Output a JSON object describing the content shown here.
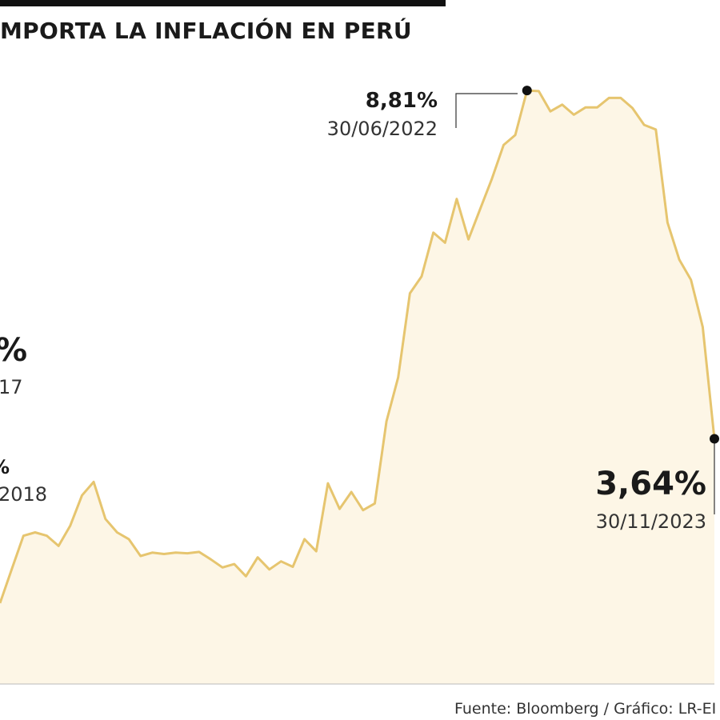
{
  "title": "MPORTA LA INFLACIÓN EN PERÚ",
  "source": "Fuente: Bloomberg / Gráfico: LR-EI",
  "colors": {
    "line": "#e6c56f",
    "area": "#fdf6e6",
    "marker": "#111111"
  },
  "annotations": {
    "peak": {
      "value": "8,81%",
      "date": "30/06/2022"
    },
    "latest": {
      "value": "3,64%",
      "date": "30/11/2023"
    },
    "left_partial_1": {
      "value": "%",
      "date": "17"
    },
    "left_partial_2": {
      "value": "%",
      "date": "2018"
    }
  },
  "chart_data": {
    "type": "area",
    "title": "MPORTA LA INFLACIÓN EN PERÚ",
    "xlabel": "",
    "ylabel": "",
    "grid": false,
    "ylim": [
      0,
      9.5
    ],
    "series": [
      {
        "values": [
          1.2,
          1.7,
          2.2,
          2.25,
          2.2,
          2.05,
          2.35,
          2.8,
          3.0,
          2.45,
          2.25,
          2.15,
          1.9,
          1.95,
          1.93,
          1.95,
          1.94,
          1.96,
          1.85,
          1.73,
          1.78,
          1.6,
          1.88,
          1.7,
          1.82,
          1.74,
          2.15,
          1.97,
          2.98,
          2.6,
          2.85,
          2.58,
          2.68,
          3.9,
          4.55,
          5.8,
          6.05,
          6.7,
          6.55,
          7.2,
          6.6,
          7.05,
          7.5,
          8.0,
          8.15,
          8.81,
          8.8,
          8.5,
          8.6,
          8.45,
          8.56,
          8.56,
          8.7,
          8.7,
          8.55,
          8.3,
          8.23,
          6.85,
          6.3,
          6.0,
          5.3,
          3.64
        ]
      }
    ],
    "x_range": [
      "",
      "30/11/2023"
    ],
    "highlighted_points": [
      {
        "date": "30/06/2022",
        "value": 8.81
      },
      {
        "date": "30/11/2023",
        "value": 3.64
      }
    ]
  }
}
